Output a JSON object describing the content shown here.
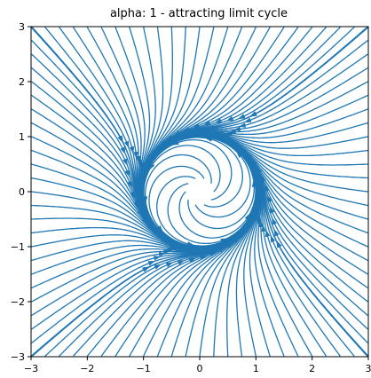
{
  "chart_data": {
    "type": "streamplot",
    "title": "alpha: 1 - attracting limit cycle",
    "xlabel": "",
    "ylabel": "",
    "xlim": [
      -3,
      3
    ],
    "ylim": [
      -3,
      3
    ],
    "x_ticks": [
      -3,
      -2,
      -1,
      0,
      1,
      2,
      3
    ],
    "y_ticks": [
      -3,
      -2,
      -1,
      0,
      1,
      2,
      3
    ],
    "x_tick_labels": [
      "−3",
      "−2",
      "−1",
      "0",
      "1",
      "2",
      "3"
    ],
    "y_tick_labels": [
      "−3",
      "−2",
      "−1",
      "0",
      "1",
      "2",
      "3"
    ],
    "grid": false,
    "alpha": 1,
    "vector_field": "dr/dt = r(alpha - r^2) + inward drift, dtheta/dt = 1",
    "stream_color": "#1f77b4"
  }
}
